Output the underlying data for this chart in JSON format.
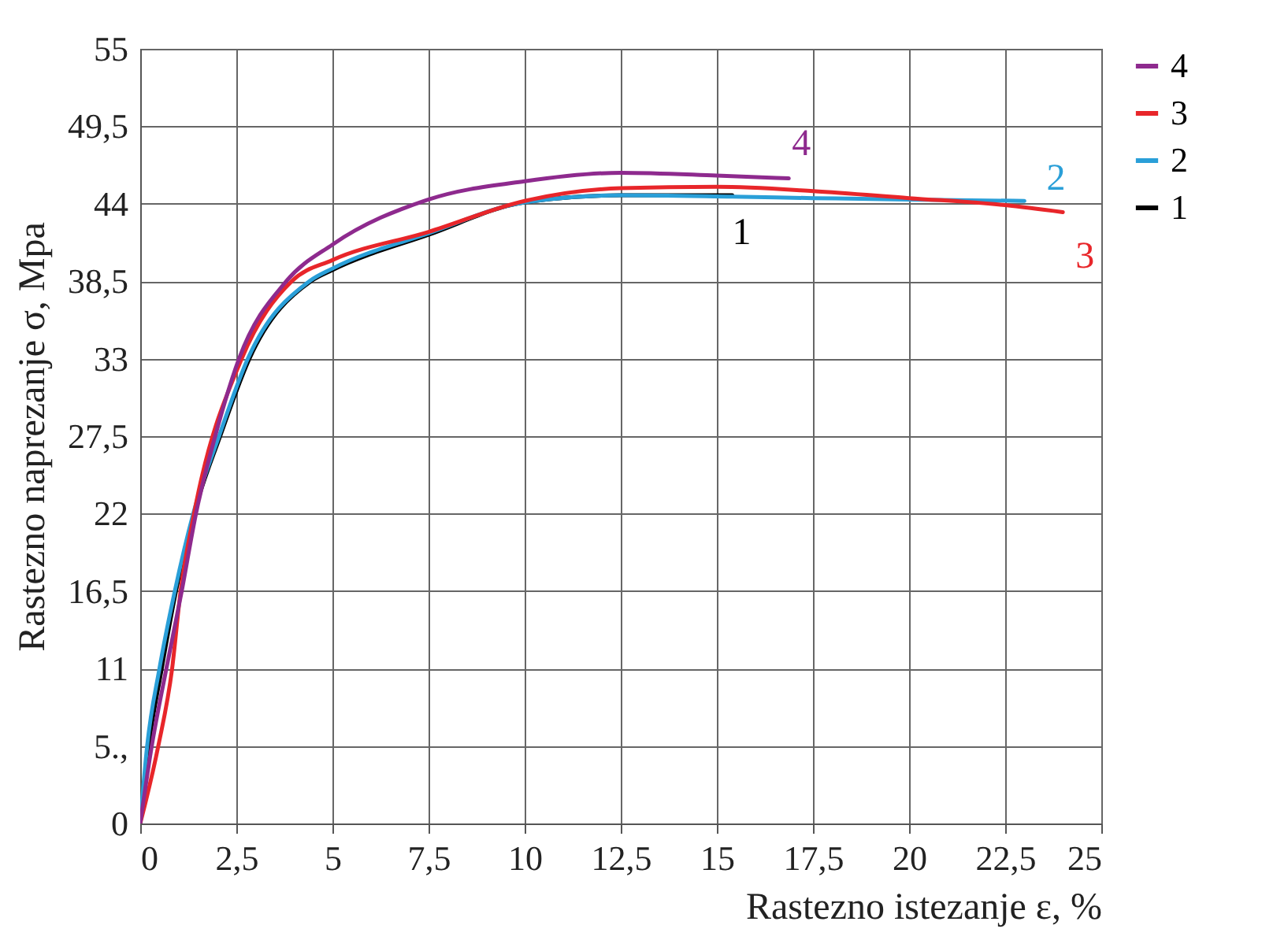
{
  "chart_data": {
    "type": "line",
    "xlabel": "Rastezno istezanje ε, %",
    "ylabel": "Rastezno naprezanje σ, Mpa",
    "xlim": [
      0,
      25
    ],
    "ylim": [
      0,
      55
    ],
    "xticks": [
      0,
      {
        "value": 2.5,
        "label": "2,5"
      },
      5,
      {
        "value": 7.5,
        "label": "7,5"
      },
      10,
      {
        "value": 12.5,
        "label": "12,5"
      },
      15,
      {
        "value": 17.5,
        "label": "17,5"
      },
      20,
      {
        "value": 22.5,
        "label": "22,5"
      },
      25
    ],
    "yticks": [
      0,
      {
        "value": 5.5,
        "label": "5.,"
      },
      11,
      {
        "value": 16.5,
        "label": "16,5"
      },
      22,
      {
        "value": 27.5,
        "label": "27,5"
      },
      33,
      {
        "value": 38.5,
        "label": "38,5"
      },
      44,
      {
        "value": 49.5,
        "label": "49,5"
      },
      55
    ],
    "grid": true,
    "legend": "right",
    "series": [
      {
        "name": "1",
        "color": "#000000",
        "x": [
          0,
          0.22,
          0.56,
          0.93,
          1.4,
          2.08,
          2.84,
          4.44,
          5,
          7.5,
          10,
          12.5,
          15.4
        ],
        "values": [
          0,
          5.5,
          11,
          16.5,
          22,
          27.5,
          33,
          38.5,
          39.3,
          41.8,
          44.1,
          44.6,
          44.6
        ]
      },
      {
        "name": "2",
        "color": "#2a9fd8",
        "x": [
          0,
          0.18,
          0.5,
          0.9,
          1.38,
          2.05,
          2.8,
          4.4,
          5,
          7.5,
          10,
          12.5,
          15.4,
          17.5,
          20,
          23
        ],
        "values": [
          0,
          5.5,
          11,
          16.5,
          22,
          27.5,
          33,
          38.5,
          39.4,
          41.9,
          44.1,
          44.6,
          44.5,
          44.4,
          44.3,
          44.2
        ]
      },
      {
        "name": "3",
        "color": "#e8262a",
        "x": [
          0,
          0.47,
          0.83,
          1.05,
          1.4,
          2.64,
          3.94,
          5,
          7.5,
          10,
          12.5,
          15,
          17.5,
          20,
          22.5,
          24
        ],
        "values": [
          0,
          5.5,
          11,
          16.5,
          22,
          33,
          38.5,
          40,
          42,
          44.2,
          45.1,
          45.2,
          44.9,
          44.4,
          43.9,
          43.4
        ]
      },
      {
        "name": "4",
        "color": "#8e2a8e",
        "x": [
          0,
          0.3,
          0.68,
          1.08,
          1.45,
          1.95,
          2.57,
          3.8,
          5,
          7.5,
          10,
          12.5,
          15,
          16.87
        ],
        "values": [
          0,
          5.5,
          11,
          16.5,
          22,
          27.5,
          33,
          38.5,
          41.1,
          44.3,
          45.6,
          46.2,
          46,
          45.8
        ]
      }
    ]
  }
}
